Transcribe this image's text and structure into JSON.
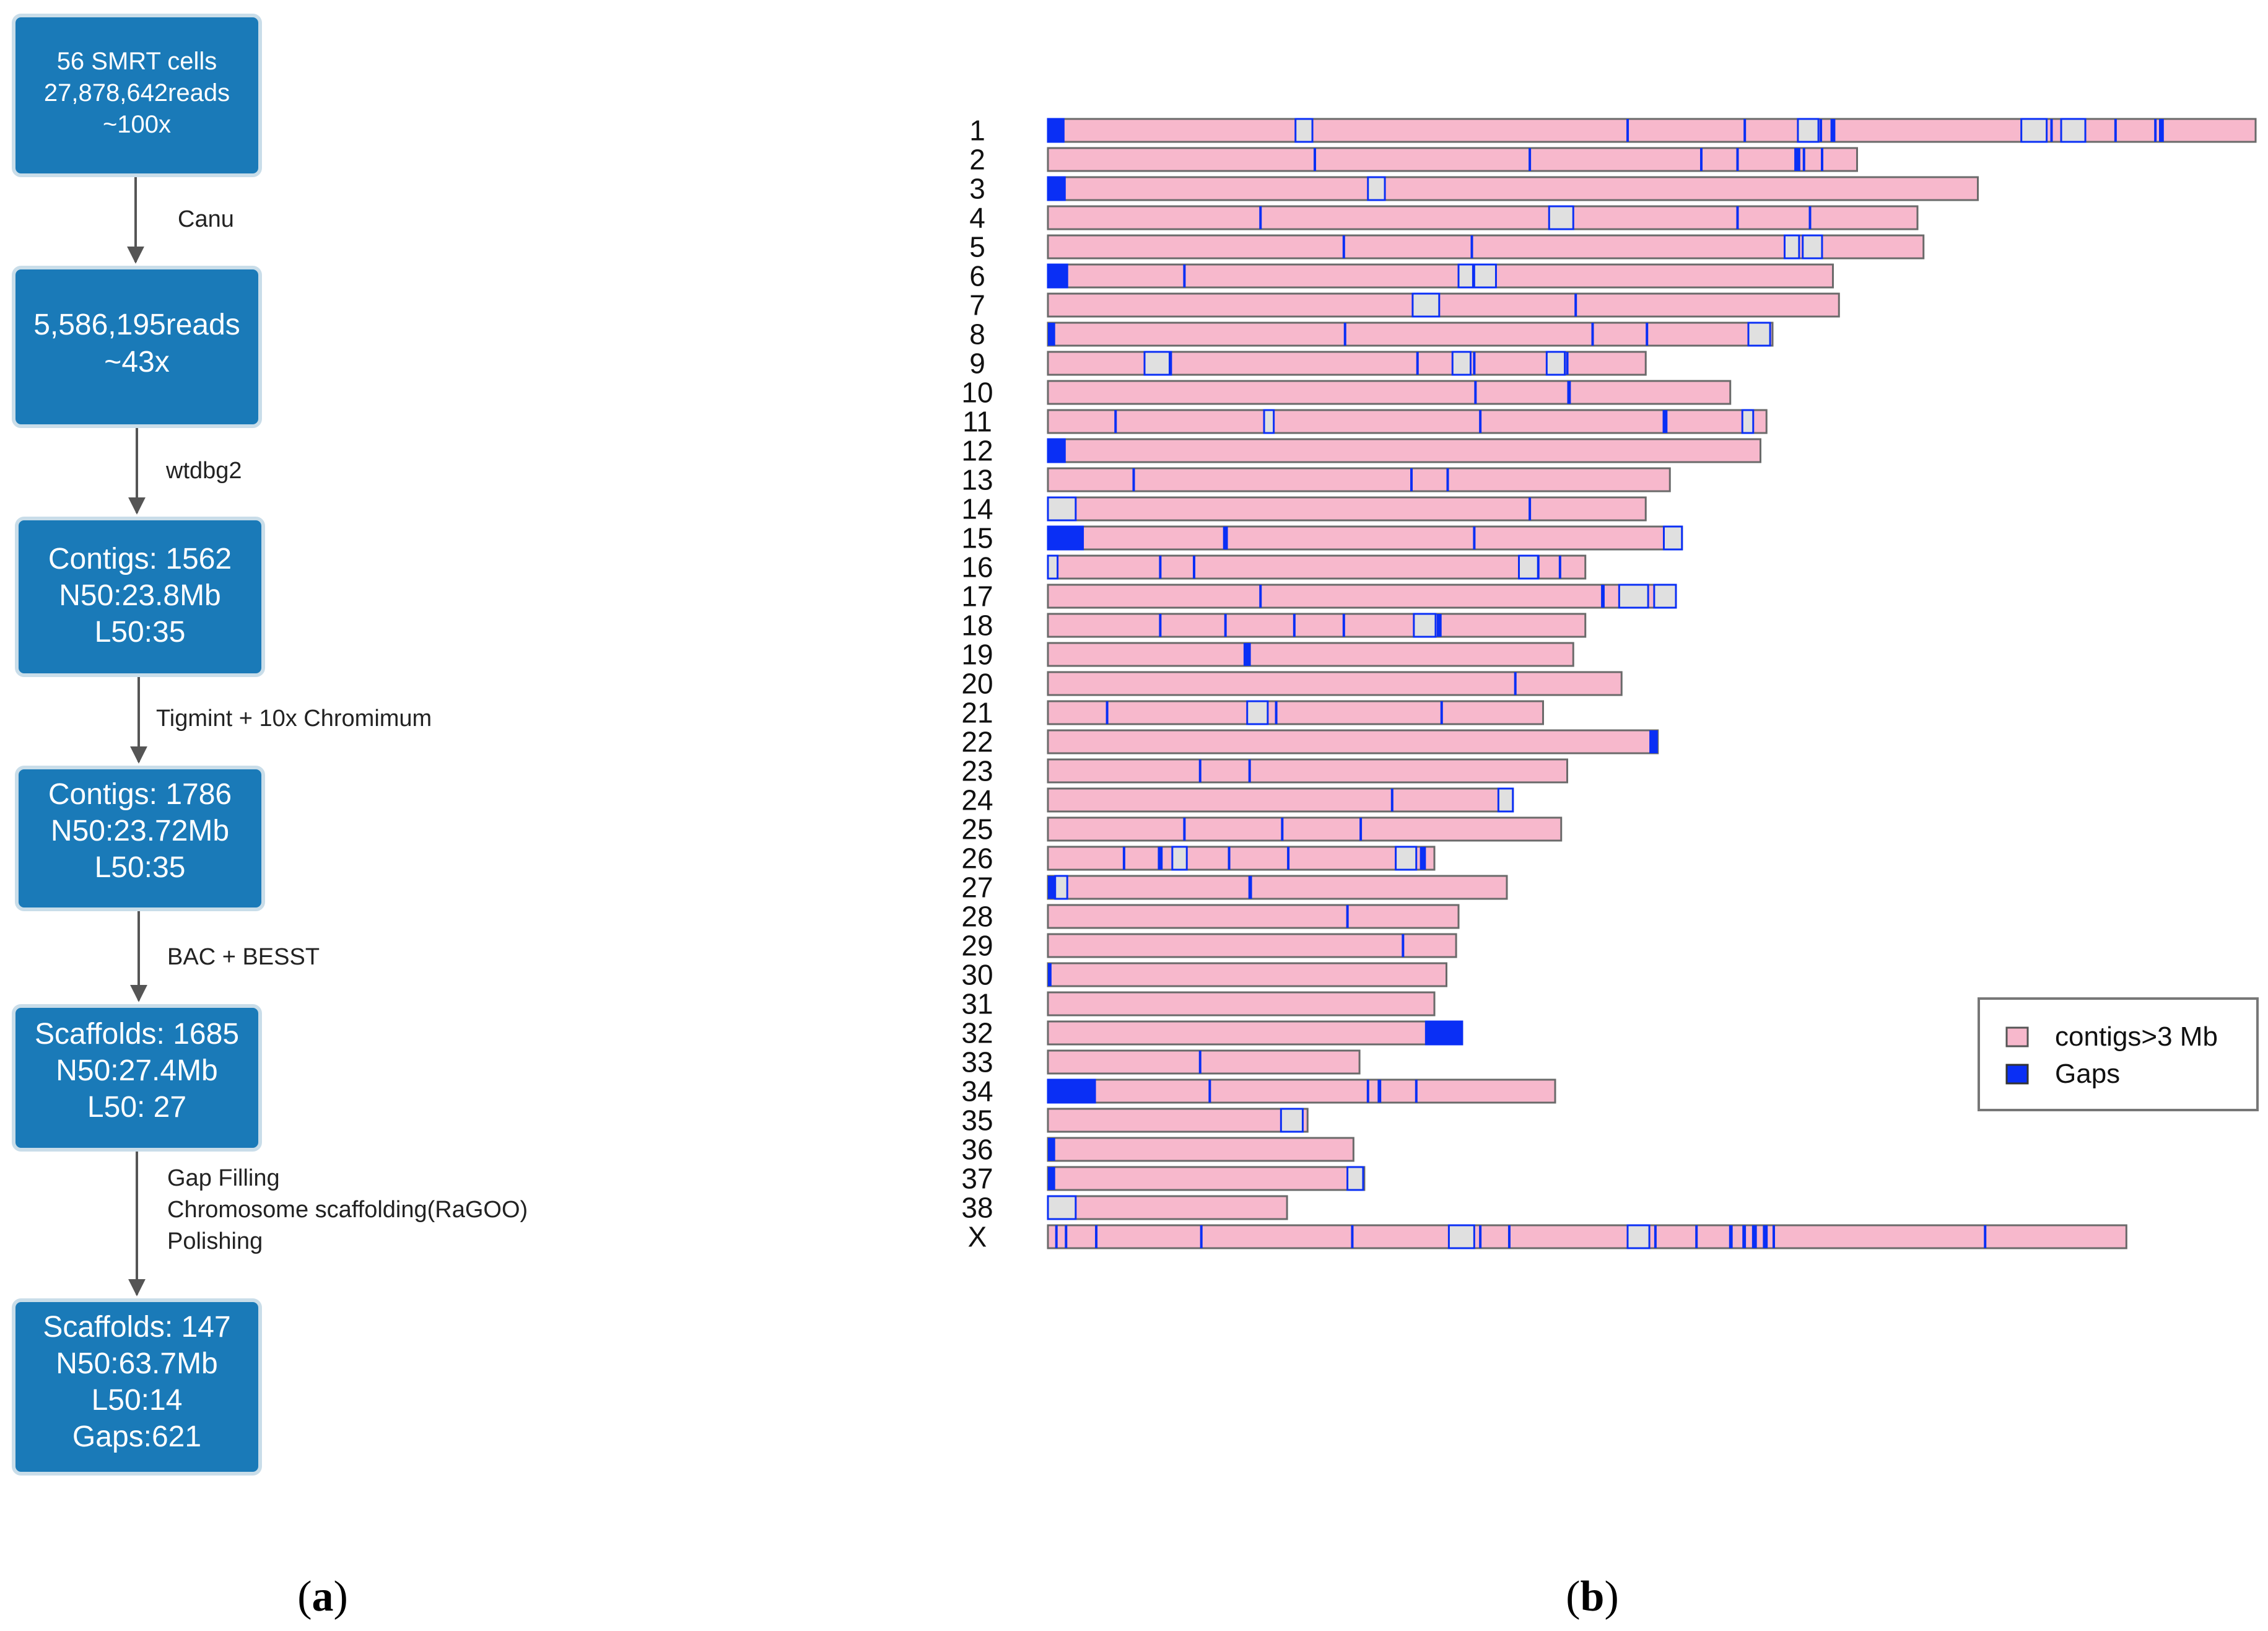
{
  "panel_a": {
    "caption": {
      "open": "(",
      "letter": "a",
      "close": ")"
    },
    "colors": {
      "box_fill": "#1a7ab8",
      "box_border": "#c9dde9",
      "arrow": "#555555"
    },
    "boxes": [
      {
        "lines": [
          "56 SMRT cells",
          "27,878,642reads",
          "~100x"
        ]
      },
      {
        "lines": [
          "5,586,195reads",
          "~43x"
        ]
      },
      {
        "lines": [
          "Contigs: 1562",
          "N50:23.8Mb",
          "L50:35"
        ]
      },
      {
        "lines": [
          "Contigs: 1786",
          "N50:23.72Mb",
          "L50:35"
        ]
      },
      {
        "lines": [
          "Scaffolds: 1685",
          "N50:27.4Mb",
          "L50: 27"
        ]
      },
      {
        "lines": [
          "Scaffolds: 147",
          "N50:63.7Mb",
          "L50:14",
          "Gaps:621"
        ]
      }
    ],
    "steps": [
      {
        "lines": [
          "Canu"
        ]
      },
      {
        "lines": [
          "wtdbg2"
        ]
      },
      {
        "lines": [
          "Tigmint + 10x Chromimum"
        ]
      },
      {
        "lines": [
          "BAC + BESST"
        ]
      },
      {
        "lines": [
          "Gap Filling",
          "Chromosome scaffolding(RaGOO)",
          "Polishing"
        ]
      }
    ]
  },
  "panel_b": {
    "caption": {
      "open": "(",
      "letter": "b",
      "close": ")"
    },
    "legend": {
      "items": [
        {
          "label": "contigs>3 Mb",
          "color": "#f7b8cc"
        },
        {
          "label": "Gaps",
          "color": "#0a2ff5"
        }
      ]
    },
    "colors": {
      "contig": "#f7b8cc",
      "gap": "#0a2ff5",
      "unplaced": "#e0e0e0",
      "outline": "#6a6a6a"
    },
    "chart_data": {
      "type": "ideogram",
      "unit": "relative length (longest = 100)",
      "chromosomes": [
        {
          "name": "1",
          "length": 100,
          "gaps": [
            [
              0,
              1.3
            ],
            [
              20.5,
              1.4
            ],
            [
              47.9,
              0.2
            ],
            [
              57.6,
              0.2
            ],
            [
              62.1,
              1.7
            ],
            [
              63.9,
              0.2
            ],
            [
              64.8,
              0.4
            ],
            [
              80.6,
              2.1
            ],
            [
              83.0,
              0.2
            ],
            [
              83.9,
              2.0
            ],
            [
              88.3,
              0.2
            ],
            [
              91.6,
              0.2
            ],
            [
              92.0,
              0.4
            ]
          ]
        },
        {
          "name": "2",
          "length": 67.0,
          "gaps": [
            [
              22.0,
              0.2
            ],
            [
              39.8,
              0.2
            ],
            [
              54.0,
              0.2
            ],
            [
              57.0,
              0.2
            ],
            [
              61.8,
              0.5
            ],
            [
              62.5,
              0.2
            ],
            [
              64.0,
              0.2
            ]
          ]
        },
        {
          "name": "3",
          "length": 77.0,
          "gaps": [
            [
              0,
              1.4
            ],
            [
              26.5,
              1.4
            ]
          ]
        },
        {
          "name": "4",
          "length": 72.0,
          "gaps": [
            [
              17.5,
              0.2
            ],
            [
              41.5,
              2.0
            ],
            [
              57.0,
              0.2
            ],
            [
              63.0,
              0.2
            ]
          ]
        },
        {
          "name": "5",
          "length": 72.5,
          "gaps": [
            [
              24.4,
              0.2
            ],
            [
              35.0,
              0.2
            ],
            [
              61.0,
              1.2
            ],
            [
              62.5,
              1.6
            ]
          ]
        },
        {
          "name": "6",
          "length": 65.0,
          "gaps": [
            [
              0,
              1.6
            ],
            [
              11.2,
              0.2
            ],
            [
              34.0,
              1.2
            ],
            [
              35.3,
              1.8
            ]
          ]
        },
        {
          "name": "7",
          "length": 65.5,
          "gaps": [
            [
              30.2,
              2.2
            ],
            [
              43.6,
              0.2
            ]
          ]
        },
        {
          "name": "8",
          "length": 60.0,
          "gaps": [
            [
              0,
              0.6
            ],
            [
              24.5,
              0.2
            ],
            [
              45.0,
              0.2
            ],
            [
              49.5,
              0.2
            ],
            [
              58.0,
              1.8
            ]
          ]
        },
        {
          "name": "9",
          "length": 49.5,
          "gaps": [
            [
              8.0,
              2.2
            ],
            [
              10.0,
              0.2
            ],
            [
              30.5,
              0.2
            ],
            [
              33.5,
              1.5
            ],
            [
              35.2,
              0.2
            ],
            [
              41.3,
              1.5
            ],
            [
              42.9,
              0.2
            ]
          ]
        },
        {
          "name": "10",
          "length": 56.5,
          "gaps": [
            [
              35.3,
              0.2
            ],
            [
              43.0,
              0.3
            ]
          ]
        },
        {
          "name": "11",
          "length": 59.5,
          "gaps": [
            [
              5.5,
              0.2
            ],
            [
              17.9,
              0.8
            ],
            [
              35.7,
              0.2
            ],
            [
              50.9,
              0.4
            ],
            [
              57.5,
              0.9
            ]
          ]
        },
        {
          "name": "12",
          "length": 59.0,
          "gaps": [
            [
              0,
              1.4
            ]
          ]
        },
        {
          "name": "13",
          "length": 51.5,
          "gaps": [
            [
              7.0,
              0.2
            ],
            [
              30.0,
              0.2
            ],
            [
              33.0,
              0.2
            ]
          ]
        },
        {
          "name": "14",
          "length": 49.5,
          "gaps": [
            [
              0,
              2.3
            ],
            [
              39.8,
              0.2
            ]
          ]
        },
        {
          "name": "15",
          "length": 52.5,
          "gaps": [
            [
              0,
              2.9
            ],
            [
              14.5,
              0.4
            ],
            [
              35.2,
              0.2
            ],
            [
              51.0,
              1.5
            ]
          ]
        },
        {
          "name": "16",
          "length": 44.5,
          "gaps": [
            [
              0,
              0.8
            ],
            [
              9.2,
              0.2
            ],
            [
              12.0,
              0.2
            ],
            [
              39.0,
              1.6
            ],
            [
              40.5,
              0.2
            ],
            [
              42.3,
              0.2
            ]
          ]
        },
        {
          "name": "17",
          "length": 52.0,
          "gaps": [
            [
              17.5,
              0.2
            ],
            [
              45.8,
              0.3
            ],
            [
              47.3,
              2.4
            ],
            [
              50.2,
              1.8
            ]
          ]
        },
        {
          "name": "18",
          "length": 44.5,
          "gaps": [
            [
              9.2,
              0.2
            ],
            [
              14.6,
              0.2
            ],
            [
              20.3,
              0.2
            ],
            [
              24.4,
              0.2
            ],
            [
              30.3,
              1.8
            ],
            [
              32.2,
              0.4
            ]
          ]
        },
        {
          "name": "19",
          "length": 43.5,
          "gaps": [
            [
              16.2,
              0.6
            ]
          ]
        },
        {
          "name": "20",
          "length": 47.5,
          "gaps": [
            [
              38.6,
              0.2
            ]
          ]
        },
        {
          "name": "21",
          "length": 41.0,
          "gaps": [
            [
              4.8,
              0.2
            ],
            [
              16.5,
              1.7
            ],
            [
              18.8,
              0.2
            ],
            [
              32.5,
              0.2
            ]
          ]
        },
        {
          "name": "22",
          "length": 50.5,
          "gaps": [
            [
              49.8,
              0.7
            ]
          ]
        },
        {
          "name": "23",
          "length": 43.0,
          "gaps": [
            [
              12.5,
              0.2
            ],
            [
              16.6,
              0.2
            ]
          ]
        },
        {
          "name": "24",
          "length": 38.5,
          "gaps": [
            [
              28.4,
              0.2
            ],
            [
              37.3,
              1.2
            ]
          ]
        },
        {
          "name": "25",
          "length": 42.5,
          "gaps": [
            [
              11.2,
              0.2
            ],
            [
              19.3,
              0.2
            ],
            [
              25.8,
              0.2
            ]
          ]
        },
        {
          "name": "26",
          "length": 32.0,
          "gaps": [
            [
              6.2,
              0.2
            ],
            [
              9.1,
              0.4
            ],
            [
              10.3,
              1.2
            ],
            [
              14.9,
              0.2
            ],
            [
              19.8,
              0.2
            ],
            [
              28.8,
              1.7
            ],
            [
              30.8,
              0.5
            ]
          ]
        },
        {
          "name": "27",
          "length": 38.0,
          "gaps": [
            [
              0,
              0.6
            ],
            [
              0.6,
              1.0
            ],
            [
              16.6,
              0.3
            ]
          ]
        },
        {
          "name": "28",
          "length": 34.0,
          "gaps": [
            [
              24.7,
              0.2
            ]
          ]
        },
        {
          "name": "29",
          "length": 33.8,
          "gaps": [
            [
              29.3,
              0.2
            ]
          ]
        },
        {
          "name": "30",
          "length": 33.0,
          "gaps": [
            [
              0,
              0.3
            ]
          ]
        },
        {
          "name": "31",
          "length": 32.0,
          "gaps": []
        },
        {
          "name": "32",
          "length": 34.3,
          "gaps": [
            [
              31.3,
              3.0
            ]
          ]
        },
        {
          "name": "33",
          "length": 25.8,
          "gaps": [
            [
              12.5,
              0.2
            ]
          ]
        },
        {
          "name": "34",
          "length": 42.0,
          "gaps": [
            [
              0,
              3.9
            ],
            [
              13.3,
              0.2
            ],
            [
              26.4,
              0.2
            ],
            [
              27.3,
              0.3
            ],
            [
              30.4,
              0.2
            ]
          ]
        },
        {
          "name": "35",
          "length": 21.5,
          "gaps": [
            [
              19.3,
              1.8
            ]
          ]
        },
        {
          "name": "36",
          "length": 25.3,
          "gaps": [
            [
              0,
              0.6
            ]
          ]
        },
        {
          "name": "37",
          "length": 26.2,
          "gaps": [
            [
              0,
              0.6
            ],
            [
              24.8,
              1.3
            ]
          ]
        },
        {
          "name": "38",
          "length": 19.8,
          "gaps": [
            [
              0,
              2.3
            ]
          ]
        },
        {
          "name": "X",
          "length": 89.3,
          "gaps": [
            [
              0.6,
              0.2
            ],
            [
              1.4,
              0.2
            ],
            [
              3.9,
              0.2
            ],
            [
              12.6,
              0.2
            ],
            [
              25.1,
              0.2
            ],
            [
              33.2,
              2.1
            ],
            [
              35.7,
              0.2
            ],
            [
              38.1,
              0.2
            ],
            [
              48.0,
              1.8
            ],
            [
              50.2,
              0.2
            ],
            [
              53.6,
              0.2
            ],
            [
              56.4,
              0.3
            ],
            [
              57.5,
              0.3
            ],
            [
              58.3,
              0.4
            ],
            [
              59.2,
              0.4
            ],
            [
              60.0,
              0.2
            ],
            [
              77.5,
              0.2
            ]
          ]
        }
      ]
    }
  }
}
